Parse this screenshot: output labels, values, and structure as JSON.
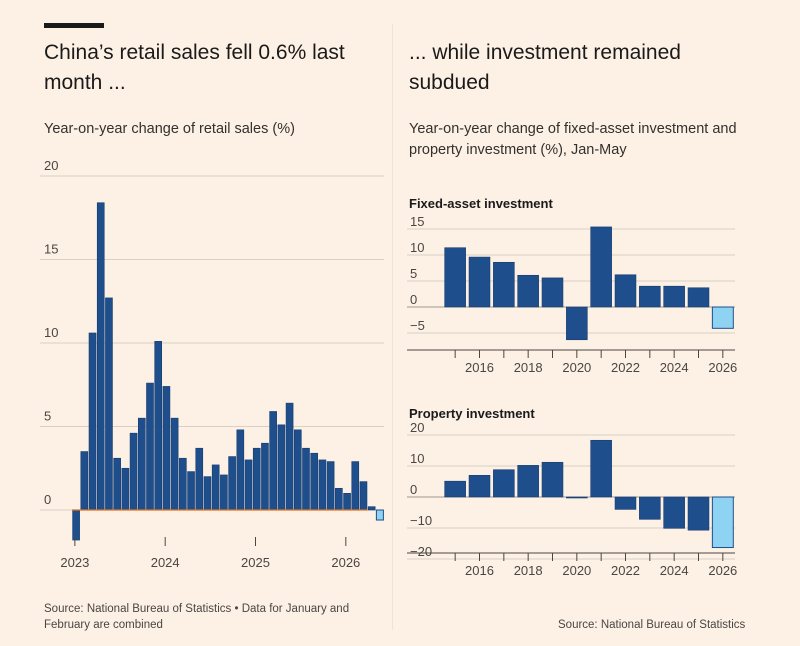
{
  "left": {
    "title": "China’s retail sales fell 0.6% last month ...",
    "subtitle": "Year-on-year change of retail sales (%)",
    "source": "Source: National Bureau of Statistics • Data for January and February are combined"
  },
  "right": {
    "title": "... while investment remained subdued",
    "subtitle": "Year-on-year change of fixed-asset investment and property investment (%), Jan-May",
    "source": "Source: National Bureau of Statistics"
  },
  "colors": {
    "background": "#fdf1e5",
    "bar": "#1f4e8c",
    "bar_highlight": "#8fd3f2",
    "grid": "#d9cfc3",
    "zero_line": "#a09990",
    "retail_baseline": "#e8701a"
  },
  "chart_data": [
    {
      "id": "retail",
      "type": "bar",
      "title": "China’s retail sales fell 0.6% last month ...",
      "ylabel": "Year-on-year change of retail sales (%)",
      "ylim": [
        -2,
        20
      ],
      "yticks": [
        0,
        5,
        10,
        15,
        20
      ],
      "xticks": [
        "2023",
        "2024",
        "2025",
        "2026"
      ],
      "series": [
        {
          "values": [
            -1.8,
            3.5,
            10.6,
            18.4,
            12.7,
            3.1,
            2.5,
            4.6,
            5.5,
            7.6,
            10.1,
            7.4,
            5.5,
            3.1,
            2.3,
            3.7,
            2.0,
            2.7,
            2.1,
            3.2,
            4.8,
            3.0,
            3.7,
            4.0,
            5.9,
            5.1,
            6.4,
            4.8,
            3.7,
            3.4,
            3.0,
            2.9,
            1.3,
            1.0,
            2.9,
            1.7,
            0.2,
            -0.6
          ],
          "highlight_last": true
        }
      ],
      "grid": true
    },
    {
      "id": "fai",
      "type": "bar",
      "title": "Fixed-asset investment",
      "ylim": [
        -7,
        15
      ],
      "yticks": [
        15,
        10,
        5,
        0,
        -5
      ],
      "categories": [
        "2015",
        "2016",
        "2017",
        "2018",
        "2019",
        "2020",
        "2021",
        "2022",
        "2023",
        "2024",
        "2025",
        "2026"
      ],
      "xticks": [
        "2016",
        "2018",
        "2020",
        "2022",
        "2024",
        "2026"
      ],
      "values": [
        11.4,
        9.6,
        8.6,
        6.1,
        5.6,
        -6.3,
        15.4,
        6.2,
        4.0,
        4.0,
        3.7,
        -4.1
      ],
      "highlight_last": true,
      "grid": true
    },
    {
      "id": "property",
      "type": "bar",
      "title": "Property investment",
      "ylim": [
        -20,
        20
      ],
      "yticks": [
        20,
        10,
        0,
        -10,
        -20
      ],
      "categories": [
        "2015",
        "2016",
        "2017",
        "2018",
        "2019",
        "2020",
        "2021",
        "2022",
        "2023",
        "2024",
        "2025",
        "2026"
      ],
      "xticks": [
        "2016",
        "2018",
        "2020",
        "2022",
        "2024",
        "2026"
      ],
      "values": [
        5.1,
        7.0,
        8.8,
        10.2,
        11.2,
        -0.3,
        18.3,
        -4.0,
        -7.2,
        -10.1,
        -10.7,
        -16.3
      ],
      "highlight_last": true,
      "grid": true
    }
  ]
}
